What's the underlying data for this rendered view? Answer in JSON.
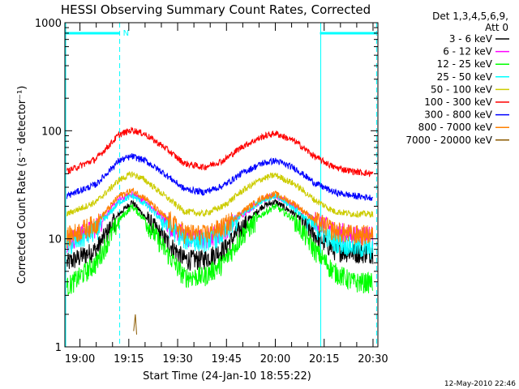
{
  "chart_data": {
    "type": "line",
    "title": "HESSI Observing Summary Count Rates, Corrected",
    "xlabel": "Start Time (24-Jan-10 18:55:22)",
    "ylabel": "Corrected Count Rate (s⁻¹ detector⁻¹)",
    "x_ticks": [
      "19:00",
      "19:15",
      "19:30",
      "19:45",
      "20:00",
      "20:15",
      "20:30"
    ],
    "x_tick_minutes": [
      0,
      15,
      30,
      45,
      60,
      75,
      90
    ],
    "y_scale": "log",
    "y_ticks": [
      "1",
      "10",
      "100",
      "1000"
    ],
    "ylim": [
      1,
      1000
    ],
    "x_range_minutes": [
      -4.63,
      91.5
    ],
    "legend_header": [
      "Det 1,3,4,5,6,9,",
      "Att 0"
    ],
    "footer_date": "12-May-2010 22:46",
    "flag_label": "N",
    "night_intervals": [
      {
        "start_min": -4.63,
        "end_min": 12.2,
        "label": "N"
      },
      {
        "start_min": 73.7,
        "end_min": 91.1,
        "label": ""
      }
    ],
    "series": [
      {
        "name": "3 - 6 keV",
        "color": "#000000",
        "points": [
          [
            -4,
            6
          ],
          [
            5,
            8
          ],
          [
            12,
            17
          ],
          [
            16,
            22
          ],
          [
            20,
            16
          ],
          [
            26,
            10
          ],
          [
            32,
            6.5
          ],
          [
            38,
            6.5
          ],
          [
            44,
            8
          ],
          [
            50,
            13
          ],
          [
            56,
            20
          ],
          [
            60,
            22
          ],
          [
            66,
            17
          ],
          [
            72,
            11
          ],
          [
            78,
            8
          ],
          [
            84,
            7.5
          ],
          [
            90,
            7.5
          ]
        ]
      },
      {
        "name": "6 - 12 keV",
        "color": "#ff00ff",
        "points": [
          [
            -4,
            9.5
          ],
          [
            5,
            13
          ],
          [
            12,
            23
          ],
          [
            16,
            26
          ],
          [
            20,
            22
          ],
          [
            26,
            15
          ],
          [
            32,
            10.5
          ],
          [
            38,
            10
          ],
          [
            44,
            12
          ],
          [
            50,
            17
          ],
          [
            56,
            23
          ],
          [
            60,
            25
          ],
          [
            66,
            20
          ],
          [
            72,
            15
          ],
          [
            78,
            12
          ],
          [
            84,
            11
          ],
          [
            90,
            11
          ]
        ]
      },
      {
        "name": "12 - 25 keV",
        "color": "#00ff00",
        "points": [
          [
            -4,
            3.6
          ],
          [
            5,
            6
          ],
          [
            12,
            15
          ],
          [
            16,
            20
          ],
          [
            20,
            15
          ],
          [
            26,
            8
          ],
          [
            32,
            4.5
          ],
          [
            38,
            4.5
          ],
          [
            44,
            6
          ],
          [
            50,
            11
          ],
          [
            56,
            17
          ],
          [
            60,
            20
          ],
          [
            66,
            15
          ],
          [
            72,
            8
          ],
          [
            78,
            5
          ],
          [
            84,
            4
          ],
          [
            90,
            4
          ]
        ]
      },
      {
        "name": "25 - 50 keV",
        "color": "#00ffff",
        "points": [
          [
            -4,
            8.5
          ],
          [
            5,
            12
          ],
          [
            12,
            22
          ],
          [
            16,
            25
          ],
          [
            20,
            21
          ],
          [
            26,
            14
          ],
          [
            32,
            10
          ],
          [
            38,
            9.5
          ],
          [
            44,
            11
          ],
          [
            50,
            17
          ],
          [
            56,
            23
          ],
          [
            60,
            25
          ],
          [
            66,
            19
          ],
          [
            72,
            13
          ],
          [
            78,
            9.5
          ],
          [
            84,
            8.5
          ],
          [
            90,
            8
          ]
        ]
      },
      {
        "name": "50 - 100 keV",
        "color": "#cccc00",
        "points": [
          [
            -4,
            17
          ],
          [
            5,
            22
          ],
          [
            12,
            35
          ],
          [
            16,
            40
          ],
          [
            20,
            35
          ],
          [
            26,
            25
          ],
          [
            32,
            18
          ],
          [
            38,
            17
          ],
          [
            44,
            20
          ],
          [
            50,
            28
          ],
          [
            56,
            36
          ],
          [
            60,
            39
          ],
          [
            66,
            32
          ],
          [
            72,
            23
          ],
          [
            78,
            18
          ],
          [
            84,
            17
          ],
          [
            90,
            17
          ]
        ]
      },
      {
        "name": "100 - 300 keV",
        "color": "#ff0000",
        "points": [
          [
            -4,
            42
          ],
          [
            5,
            55
          ],
          [
            12,
            92
          ],
          [
            16,
            102
          ],
          [
            20,
            93
          ],
          [
            26,
            70
          ],
          [
            32,
            50
          ],
          [
            38,
            46
          ],
          [
            44,
            53
          ],
          [
            50,
            72
          ],
          [
            56,
            88
          ],
          [
            60,
            95
          ],
          [
            66,
            80
          ],
          [
            72,
            58
          ],
          [
            78,
            46
          ],
          [
            84,
            42
          ],
          [
            90,
            40
          ]
        ]
      },
      {
        "name": "300 - 800 keV",
        "color": "#0000ff",
        "points": [
          [
            -4,
            25
          ],
          [
            5,
            32
          ],
          [
            12,
            53
          ],
          [
            16,
            58
          ],
          [
            20,
            53
          ],
          [
            26,
            40
          ],
          [
            32,
            29
          ],
          [
            38,
            27
          ],
          [
            44,
            31
          ],
          [
            50,
            41
          ],
          [
            56,
            50
          ],
          [
            60,
            53
          ],
          [
            66,
            45
          ],
          [
            72,
            33
          ],
          [
            78,
            27
          ],
          [
            84,
            25
          ],
          [
            90,
            24
          ]
        ]
      },
      {
        "name": "800 - 7000 keV",
        "color": "#ff8000",
        "points": [
          [
            -4,
            10.5
          ],
          [
            5,
            14
          ],
          [
            12,
            25
          ],
          [
            16,
            28
          ],
          [
            20,
            24
          ],
          [
            26,
            16
          ],
          [
            32,
            11.5
          ],
          [
            38,
            11
          ],
          [
            44,
            13
          ],
          [
            50,
            18
          ],
          [
            56,
            24
          ],
          [
            60,
            26
          ],
          [
            66,
            21
          ],
          [
            72,
            15
          ],
          [
            78,
            12
          ],
          [
            84,
            11
          ],
          [
            90,
            11
          ]
        ]
      },
      {
        "name": "7000 - 20000 keV",
        "color": "#8b5a00",
        "points": [
          [
            16.5,
            1.4
          ],
          [
            17,
            2
          ],
          [
            17.4,
            1.3
          ]
        ]
      }
    ]
  }
}
